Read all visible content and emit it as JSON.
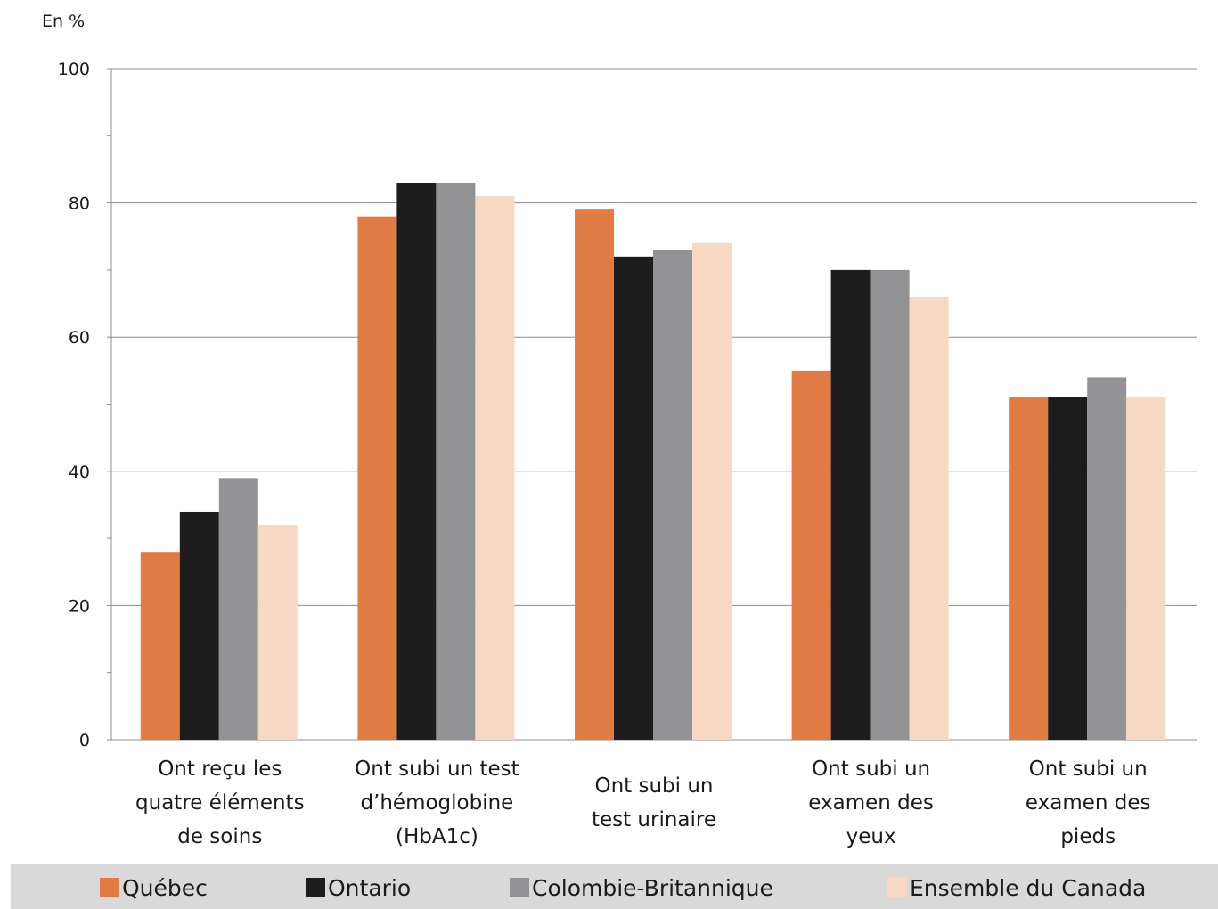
{
  "chart_data": {
    "type": "bar",
    "unit_label": "En %",
    "categories": [
      [
        "Ont reçu les",
        "quatre éléments",
        "de soins"
      ],
      [
        "Ont subi un test",
        "d’hémoglobine",
        "(HbA1c)"
      ],
      [
        "Ont subi un",
        "test urinaire"
      ],
      [
        "Ont subi un",
        "examen des",
        "yeux"
      ],
      [
        "Ont subi un",
        "examen des",
        "pieds"
      ]
    ],
    "series": [
      {
        "name": "Québec",
        "color": "#e07b45",
        "values": [
          28,
          78,
          79,
          55,
          51
        ]
      },
      {
        "name": "Ontario",
        "color": "#1c1c1c",
        "values": [
          34,
          83,
          72,
          70,
          51
        ]
      },
      {
        "name": "Colombie-Britannique",
        "color": "#939396",
        "values": [
          39,
          83,
          73,
          70,
          54
        ]
      },
      {
        "name": "Ensemble du Canada",
        "color": "#f6d8c5",
        "values": [
          32,
          81,
          74,
          66,
          51
        ]
      }
    ],
    "ylim": [
      0,
      100
    ],
    "yticks": [
      0,
      20,
      40,
      60,
      80,
      100
    ],
    "grid": true,
    "legend_position": "bottom"
  }
}
